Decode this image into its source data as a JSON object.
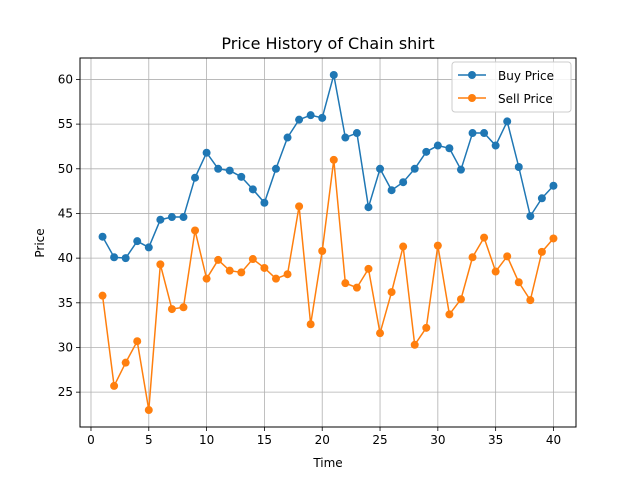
{
  "chart_data": {
    "type": "line",
    "title": "Price History of Chain shirt",
    "xlabel": "Time",
    "ylabel": "Price",
    "xlim": [
      -0.95,
      41.95
    ],
    "ylim": [
      21.1,
      62.4
    ],
    "xticks": [
      0,
      5,
      10,
      15,
      20,
      25,
      30,
      35,
      40
    ],
    "yticks": [
      25,
      30,
      35,
      40,
      45,
      50,
      55,
      60
    ],
    "grid": true,
    "legend_position": "top-right",
    "x": [
      1,
      2,
      3,
      4,
      5,
      6,
      7,
      8,
      9,
      10,
      11,
      12,
      13,
      14,
      15,
      16,
      17,
      18,
      19,
      20,
      21,
      22,
      23,
      24,
      25,
      26,
      27,
      28,
      29,
      30,
      31,
      32,
      33,
      34,
      35,
      36,
      37,
      38,
      39,
      40
    ],
    "series": [
      {
        "name": "Buy Price",
        "color": "#1f77b4",
        "values": [
          42.4,
          40.1,
          40.0,
          41.9,
          41.2,
          44.3,
          44.6,
          44.6,
          49.0,
          51.8,
          50.0,
          49.8,
          49.1,
          47.7,
          46.2,
          50.0,
          53.5,
          55.5,
          56.0,
          55.7,
          60.5,
          53.5,
          54.0,
          45.7,
          50.0,
          47.6,
          48.5,
          50.0,
          51.9,
          52.6,
          52.3,
          49.9,
          54.0,
          54.0,
          52.6,
          55.3,
          50.2,
          44.7,
          46.7,
          48.1
        ]
      },
      {
        "name": "Sell Price",
        "color": "#ff7f0e",
        "values": [
          35.8,
          25.7,
          28.3,
          30.7,
          23.0,
          39.3,
          34.3,
          34.5,
          43.1,
          37.7,
          39.8,
          38.6,
          38.4,
          39.9,
          38.9,
          37.7,
          38.2,
          45.8,
          32.6,
          40.8,
          51.0,
          37.2,
          36.7,
          38.8,
          31.6,
          36.2,
          41.3,
          30.3,
          32.2,
          41.4,
          33.7,
          35.4,
          40.1,
          42.3,
          38.5,
          40.2,
          37.3,
          35.3,
          40.7,
          42.2
        ]
      }
    ]
  }
}
